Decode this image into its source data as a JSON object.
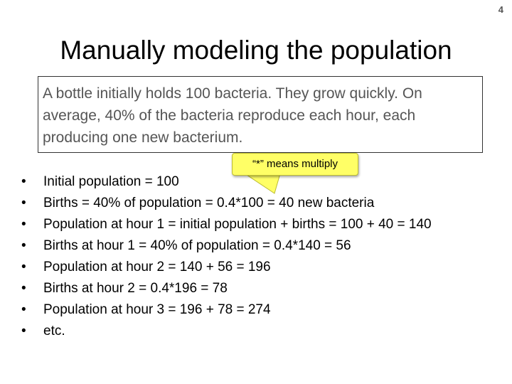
{
  "slide": {
    "number": "4",
    "title": "Manually modeling the population"
  },
  "problem": {
    "text": "A bottle initially holds 100 bacteria.  They grow quickly.  On average, 40% of the bacteria reproduce each hour, each producing one new bacterium."
  },
  "callout": {
    "text": "“*” means multiply",
    "color": "#ffff66"
  },
  "bullets": [
    "Initial population = 100",
    "Births = 40% of population = 0.4*100 = 40 new bacteria",
    "Population at hour 1 = initial population + births = 100 + 40 = 140",
    "Births at hour 1 = 40% of population = 0.4*140 = 56",
    "Population at hour 2 = 140 + 56 = 196",
    "Births at hour 2 = 0.4*196 = 78",
    "Population at hour 3 = 196 + 78 = 274",
    "etc."
  ]
}
